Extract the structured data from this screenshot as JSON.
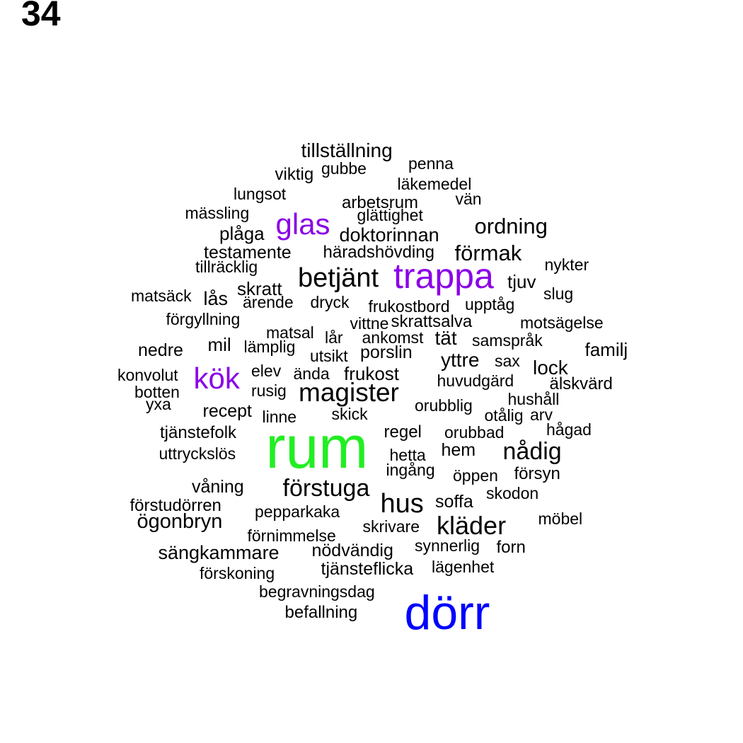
{
  "page_number": "34",
  "palette": {
    "black": "#000000",
    "purple": "#8B00E8",
    "green": "#22EE22",
    "blue": "#0000FF"
  },
  "words": [
    {
      "text": "tillställning",
      "color": "black"
    },
    {
      "text": "penna",
      "color": "black"
    },
    {
      "text": "viktig",
      "color": "black"
    },
    {
      "text": "gubbe",
      "color": "black"
    },
    {
      "text": "läkemedel",
      "color": "black"
    },
    {
      "text": "lungsot",
      "color": "black"
    },
    {
      "text": "vän",
      "color": "black"
    },
    {
      "text": "arbetsrum",
      "color": "black"
    },
    {
      "text": "mässling",
      "color": "black"
    },
    {
      "text": "glättighet",
      "color": "black"
    },
    {
      "text": "glas",
      "color": "purple"
    },
    {
      "text": "ordning",
      "color": "black"
    },
    {
      "text": "plåga",
      "color": "black"
    },
    {
      "text": "doktorinnan",
      "color": "black"
    },
    {
      "text": "testamente",
      "color": "black"
    },
    {
      "text": "häradshövding",
      "color": "black"
    },
    {
      "text": "förmak",
      "color": "black"
    },
    {
      "text": "tillräcklig",
      "color": "black"
    },
    {
      "text": "nykter",
      "color": "black"
    },
    {
      "text": "betjänt",
      "color": "black"
    },
    {
      "text": "trappa",
      "color": "purple"
    },
    {
      "text": "tjuv",
      "color": "black"
    },
    {
      "text": "skratt",
      "color": "black"
    },
    {
      "text": "slug",
      "color": "black"
    },
    {
      "text": "matsäck",
      "color": "black"
    },
    {
      "text": "lås",
      "color": "black"
    },
    {
      "text": "ärende",
      "color": "black"
    },
    {
      "text": "dryck",
      "color": "black"
    },
    {
      "text": "frukostbord",
      "color": "black"
    },
    {
      "text": "upptåg",
      "color": "black"
    },
    {
      "text": "förgyllning",
      "color": "black"
    },
    {
      "text": "vittne",
      "color": "black"
    },
    {
      "text": "skrattsalva",
      "color": "black"
    },
    {
      "text": "motsägelse",
      "color": "black"
    },
    {
      "text": "matsal",
      "color": "black"
    },
    {
      "text": "lår",
      "color": "black"
    },
    {
      "text": "ankomst",
      "color": "black"
    },
    {
      "text": "tät",
      "color": "black"
    },
    {
      "text": "samspråk",
      "color": "black"
    },
    {
      "text": "nedre",
      "color": "black"
    },
    {
      "text": "mil",
      "color": "black"
    },
    {
      "text": "lämplig",
      "color": "black"
    },
    {
      "text": "utsikt",
      "color": "black"
    },
    {
      "text": "porslin",
      "color": "black"
    },
    {
      "text": "familj",
      "color": "black"
    },
    {
      "text": "yttre",
      "color": "black"
    },
    {
      "text": "sax",
      "color": "black"
    },
    {
      "text": "lock",
      "color": "black"
    },
    {
      "text": "konvolut",
      "color": "black"
    },
    {
      "text": "kök",
      "color": "purple"
    },
    {
      "text": "elev",
      "color": "black"
    },
    {
      "text": "ända",
      "color": "black"
    },
    {
      "text": "frukost",
      "color": "black"
    },
    {
      "text": "huvudgärd",
      "color": "black"
    },
    {
      "text": "älskvärd",
      "color": "black"
    },
    {
      "text": "botten",
      "color": "black"
    },
    {
      "text": "rusig",
      "color": "black"
    },
    {
      "text": "magister",
      "color": "black"
    },
    {
      "text": "hushåll",
      "color": "black"
    },
    {
      "text": "yxa",
      "color": "black"
    },
    {
      "text": "recept",
      "color": "black"
    },
    {
      "text": "orubblig",
      "color": "black"
    },
    {
      "text": "linne",
      "color": "black"
    },
    {
      "text": "skick",
      "color": "black"
    },
    {
      "text": "otålig",
      "color": "black"
    },
    {
      "text": "arv",
      "color": "black"
    },
    {
      "text": "tjänstefolk",
      "color": "black"
    },
    {
      "text": "regel",
      "color": "black"
    },
    {
      "text": "orubbad",
      "color": "black"
    },
    {
      "text": "hågad",
      "color": "black"
    },
    {
      "text": "rum",
      "color": "green"
    },
    {
      "text": "nådig",
      "color": "black"
    },
    {
      "text": "uttryckslös",
      "color": "black"
    },
    {
      "text": "hem",
      "color": "black"
    },
    {
      "text": "hetta",
      "color": "black"
    },
    {
      "text": "ingång",
      "color": "black"
    },
    {
      "text": "försyn",
      "color": "black"
    },
    {
      "text": "öppen",
      "color": "black"
    },
    {
      "text": "våning",
      "color": "black"
    },
    {
      "text": "förstuga",
      "color": "black"
    },
    {
      "text": "skodon",
      "color": "black"
    },
    {
      "text": "förstudörren",
      "color": "black"
    },
    {
      "text": "hus",
      "color": "black"
    },
    {
      "text": "soffa",
      "color": "black"
    },
    {
      "text": "pepparkaka",
      "color": "black"
    },
    {
      "text": "möbel",
      "color": "black"
    },
    {
      "text": "ögonbryn",
      "color": "black"
    },
    {
      "text": "kläder",
      "color": "black"
    },
    {
      "text": "skrivare",
      "color": "black"
    },
    {
      "text": "förnimmelse",
      "color": "black"
    },
    {
      "text": "synnerlig",
      "color": "black"
    },
    {
      "text": "forn",
      "color": "black"
    },
    {
      "text": "sängkammare",
      "color": "black"
    },
    {
      "text": "nödvändig",
      "color": "black"
    },
    {
      "text": "lägenhet",
      "color": "black"
    },
    {
      "text": "förskoning",
      "color": "black"
    },
    {
      "text": "tjänsteflicka",
      "color": "black"
    },
    {
      "text": "begravningsdag",
      "color": "black"
    },
    {
      "text": "dörr",
      "color": "blue"
    },
    {
      "text": "befallning",
      "color": "black"
    }
  ]
}
